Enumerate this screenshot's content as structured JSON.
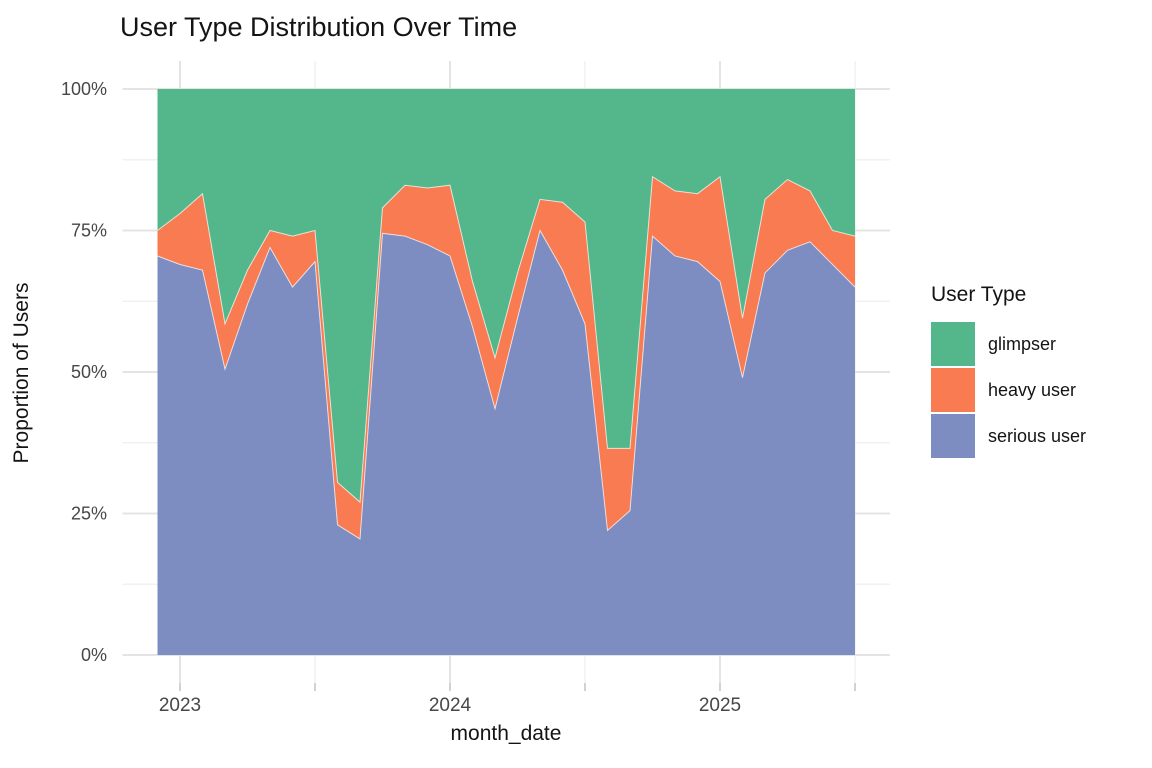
{
  "title": "User Type Distribution Over Time",
  "axes": {
    "x_title": "month_date",
    "y_title": "Proportion of Users"
  },
  "legend": {
    "title": "User Type",
    "position": "right",
    "items": [
      {
        "label": "glimpser",
        "color": "#54B78B"
      },
      {
        "label": "heavy user",
        "color": "#F87B52"
      },
      {
        "label": "serious user",
        "color": "#7D8CC1"
      }
    ]
  },
  "chart_data": {
    "type": "area",
    "stacked": true,
    "normalized": "percent",
    "title": "User Type Distribution Over Time",
    "xlabel": "month_date",
    "ylabel": "Proportion of Users",
    "ylim": [
      0,
      100
    ],
    "grid": true,
    "legend_position": "right",
    "x": [
      "2022-12",
      "2023-01",
      "2023-02",
      "2023-03",
      "2023-04",
      "2023-05",
      "2023-06",
      "2023-07",
      "2023-08",
      "2023-09",
      "2023-10",
      "2023-11",
      "2023-12",
      "2024-01",
      "2024-02",
      "2024-03",
      "2024-04",
      "2024-05",
      "2024-06",
      "2024-07",
      "2024-08",
      "2024-09",
      "2024-10",
      "2024-11",
      "2024-12",
      "2025-01",
      "2025-02",
      "2025-03",
      "2025-04",
      "2025-05",
      "2025-06",
      "2025-07"
    ],
    "xticks": [
      {
        "pos": 1,
        "label": "2023"
      },
      {
        "pos": 7,
        "label": ""
      },
      {
        "pos": 13,
        "label": "2024"
      },
      {
        "pos": 19,
        "label": ""
      },
      {
        "pos": 25,
        "label": "2025"
      },
      {
        "pos": 31,
        "label": ""
      }
    ],
    "yticks": [
      0,
      25,
      50,
      75,
      100
    ],
    "ytick_suffix": "%",
    "yticks_minor": [
      12.5,
      37.5,
      62.5,
      87.5
    ],
    "stack_order_bottom_to_top": [
      "serious user",
      "heavy user",
      "glimpser"
    ],
    "series": [
      {
        "name": "serious user",
        "color": "#7D8CC1",
        "values": [
          70.5,
          69,
          68,
          50.5,
          62,
          72,
          65,
          69.5,
          23,
          20.5,
          74.5,
          74,
          72.5,
          70.5,
          58,
          43.5,
          59.5,
          75,
          68,
          58.5,
          22,
          25.5,
          74,
          70.5,
          69.5,
          66,
          49,
          67.5,
          71.5,
          73,
          69,
          65
        ]
      },
      {
        "name": "heavy user",
        "color": "#F87B52",
        "values": [
          4.5,
          9,
          13.5,
          8,
          6,
          3,
          9,
          5.5,
          7.5,
          6.5,
          4.5,
          9,
          10,
          12.5,
          8,
          9,
          8,
          5.5,
          12,
          18,
          14.5,
          11,
          10.5,
          11.5,
          12,
          18.5,
          10.5,
          13,
          12.5,
          9,
          6,
          9
        ]
      },
      {
        "name": "glimpser",
        "color": "#54B78B",
        "values": [
          25,
          22,
          18.5,
          41.5,
          32,
          25,
          26,
          25,
          69.5,
          73,
          21,
          17,
          17.5,
          17,
          34,
          47.5,
          32.5,
          19.5,
          20,
          23.5,
          63.5,
          63.5,
          15.5,
          18,
          18.5,
          15.5,
          40.5,
          19.5,
          16,
          18,
          25,
          26
        ]
      }
    ]
  },
  "style": {
    "background": "#FFFFFF",
    "gridline_major": "#E4E4E4",
    "gridline_minor": "#F1F1F1",
    "tick_color": "#D2D2D2",
    "tick_label_color": "#474747",
    "text_color": "#141414"
  }
}
